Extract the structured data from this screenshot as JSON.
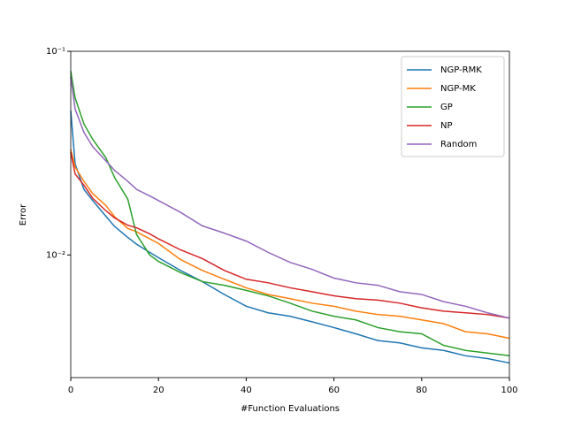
{
  "chart_data": {
    "type": "line",
    "xlabel": "#Function Evaluations",
    "ylabel": "Error",
    "x": [
      0,
      1,
      3,
      5,
      8,
      10,
      13,
      15,
      18,
      20,
      25,
      30,
      35,
      40,
      45,
      50,
      55,
      60,
      65,
      70,
      75,
      80,
      85,
      90,
      95,
      100
    ],
    "series": [
      {
        "name": "NGP-RMK",
        "color": "#1f77b4",
        "values": [
          0.051,
          0.028,
          0.021,
          0.0185,
          0.0155,
          0.0138,
          0.0122,
          0.0113,
          0.0103,
          0.0097,
          0.0084,
          0.0074,
          0.0064,
          0.0056,
          0.0052,
          0.005,
          0.0047,
          0.0044,
          0.0041,
          0.0038,
          0.0037,
          0.0035,
          0.0034,
          0.0032,
          0.0031,
          0.00295
        ]
      },
      {
        "name": "NGP-MK",
        "color": "#ff7f0e",
        "values": [
          0.033,
          0.027,
          0.023,
          0.02,
          0.0175,
          0.0154,
          0.0135,
          0.013,
          0.012,
          0.0114,
          0.0095,
          0.0084,
          0.0076,
          0.0069,
          0.0064,
          0.0061,
          0.0058,
          0.0056,
          0.0053,
          0.0051,
          0.005,
          0.0048,
          0.0046,
          0.0042,
          0.0041,
          0.0039
        ]
      },
      {
        "name": "GP",
        "color": "#2ca02c",
        "values": [
          0.08,
          0.059,
          0.044,
          0.037,
          0.03,
          0.024,
          0.0188,
          0.0126,
          0.01,
          0.0093,
          0.0082,
          0.0074,
          0.0071,
          0.0067,
          0.0063,
          0.0058,
          0.0053,
          0.005,
          0.0048,
          0.0044,
          0.0042,
          0.0041,
          0.0036,
          0.0034,
          0.0033,
          0.0032
        ]
      },
      {
        "name": "NP",
        "color": "#d62728",
        "values": [
          0.032,
          0.025,
          0.022,
          0.019,
          0.0165,
          0.0152,
          0.014,
          0.0136,
          0.0127,
          0.012,
          0.0106,
          0.0096,
          0.0084,
          0.0076,
          0.0073,
          0.0069,
          0.0066,
          0.0063,
          0.0061,
          0.006,
          0.0058,
          0.0055,
          0.0053,
          0.0052,
          0.0051,
          0.0049
        ]
      },
      {
        "name": "Random",
        "color": "#9467bd",
        "values": [
          0.075,
          0.052,
          0.04,
          0.034,
          0.029,
          0.026,
          0.023,
          0.021,
          0.0195,
          0.0185,
          0.0162,
          0.0139,
          0.0128,
          0.0117,
          0.0103,
          0.0092,
          0.0085,
          0.0077,
          0.0073,
          0.0071,
          0.0066,
          0.0064,
          0.0059,
          0.0056,
          0.0052,
          0.0049
        ]
      }
    ],
    "xlim": [
      0,
      100
    ],
    "xticks": [
      0,
      20,
      40,
      60,
      80,
      100
    ],
    "ylim": [
      0.0025,
      0.1
    ],
    "yticks": [
      {
        "value": 0.01,
        "label": "10⁻²"
      },
      {
        "value": 0.1,
        "label": "10⁻¹"
      }
    ],
    "log_y": true,
    "legend": "upper right"
  }
}
